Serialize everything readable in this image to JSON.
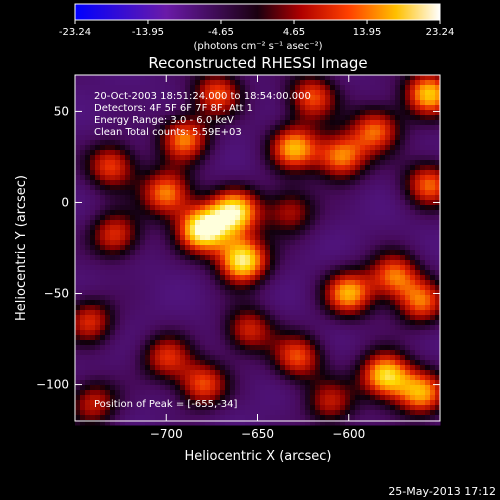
{
  "colorbar": {
    "ticks": [
      "-23.24",
      "-13.95",
      "-4.65",
      "4.65",
      "13.95",
      "23.24"
    ],
    "range": [
      -23.24,
      23.24
    ],
    "units": "(photons cm⁻² s⁻¹ asec⁻²)"
  },
  "chart_data": {
    "type": "heatmap",
    "title": "Reconstructed RHESSI Image",
    "xlabel": "Heliocentric X (arcsec)",
    "ylabel": "Heliocentric Y (arcsec)",
    "xlim": [
      -750,
      -550
    ],
    "ylim": [
      -120,
      70
    ],
    "xticks": [
      -700,
      -650,
      -600
    ],
    "yticks": [
      50,
      0,
      -50,
      -100
    ],
    "colormap": "purple-red-orange-yellow-white",
    "annotations": [
      "20-Oct-2003 18:51:24.000 to 18:54:00.000",
      "Detectors: 4F 5F 6F 7F 8F, Att 1",
      "Energy Range: 3.0 - 6.0 keV",
      "Clean     Total counts: 5.59E+03"
    ],
    "peak_label": "Position of Peak = [-655,-34]",
    "peak": [
      -655,
      -34
    ],
    "sources": [
      {
        "x": -680,
        "y": -15,
        "v": 23
      },
      {
        "x": -658,
        "y": -32,
        "v": 22
      },
      {
        "x": -662,
        "y": -5,
        "v": 19
      },
      {
        "x": -700,
        "y": 5,
        "v": 15
      },
      {
        "x": -690,
        "y": 35,
        "v": 14
      },
      {
        "x": -672,
        "y": 60,
        "v": 12
      },
      {
        "x": -730,
        "y": 20,
        "v": 12
      },
      {
        "x": -728,
        "y": -18,
        "v": 11
      },
      {
        "x": -742,
        "y": -65,
        "v": 10
      },
      {
        "x": -630,
        "y": 30,
        "v": 16
      },
      {
        "x": -620,
        "y": 58,
        "v": 12
      },
      {
        "x": -632,
        "y": -5,
        "v": 8
      },
      {
        "x": -604,
        "y": 25,
        "v": 15
      },
      {
        "x": -585,
        "y": 40,
        "v": 13
      },
      {
        "x": -556,
        "y": 60,
        "v": 18
      },
      {
        "x": -556,
        "y": 10,
        "v": 13
      },
      {
        "x": -600,
        "y": -50,
        "v": 16
      },
      {
        "x": -575,
        "y": -40,
        "v": 13
      },
      {
        "x": -560,
        "y": -55,
        "v": 12
      },
      {
        "x": -580,
        "y": -95,
        "v": 20
      },
      {
        "x": -560,
        "y": -105,
        "v": 15
      },
      {
        "x": -628,
        "y": -85,
        "v": 12
      },
      {
        "x": -655,
        "y": -70,
        "v": 10
      },
      {
        "x": -680,
        "y": -100,
        "v": 12
      },
      {
        "x": -700,
        "y": -85,
        "v": 10
      },
      {
        "x": -740,
        "y": -110,
        "v": 9
      },
      {
        "x": -610,
        "y": -110,
        "v": 8
      }
    ]
  },
  "footer": {
    "date": "25-May-2013 17:12"
  }
}
